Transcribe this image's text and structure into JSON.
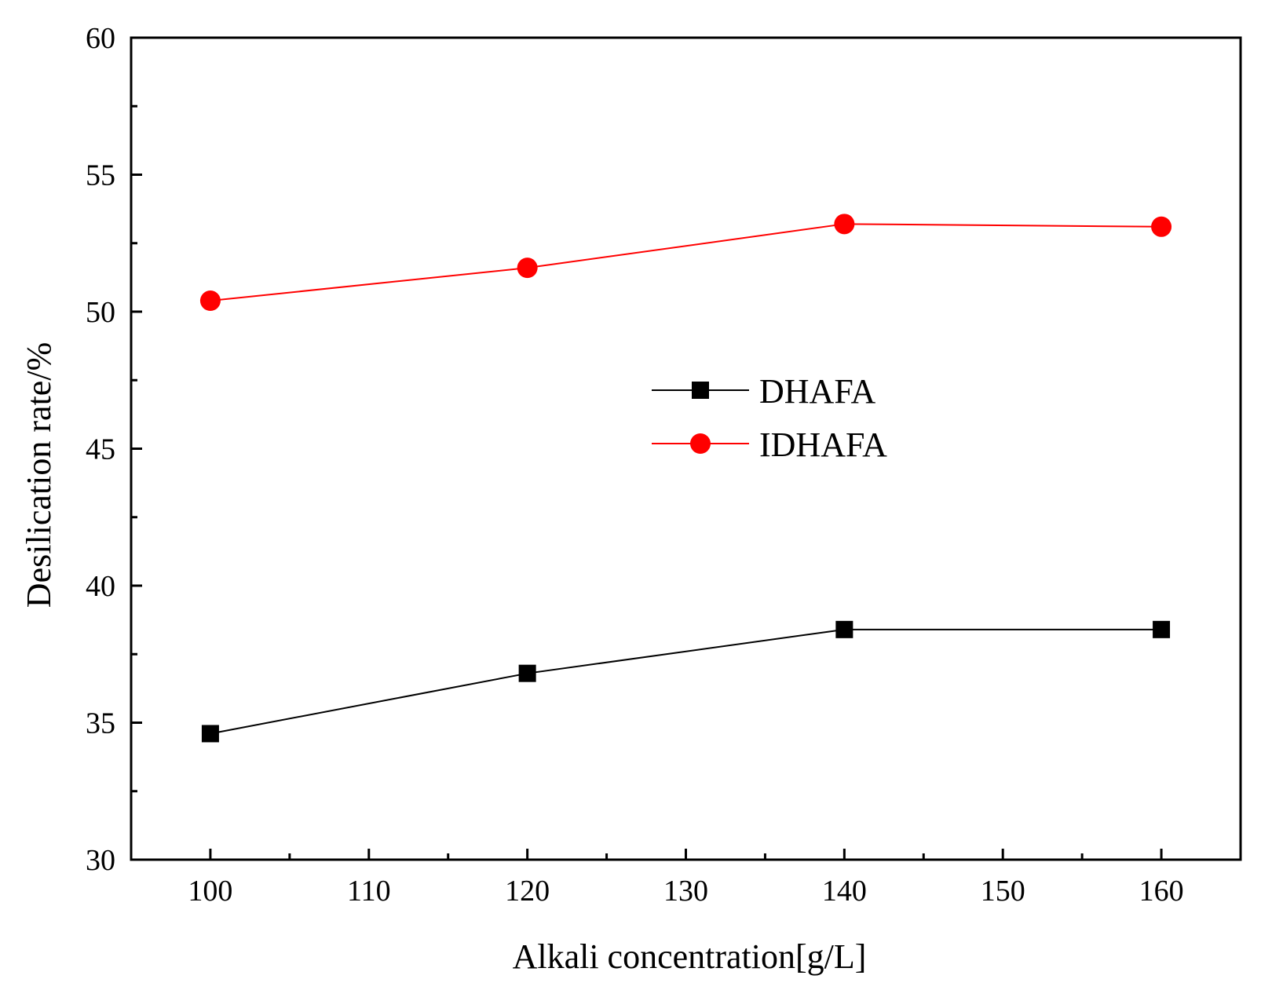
{
  "chart_data": {
    "type": "line",
    "title": "",
    "xlabel": "Alkali concentration[g/L]",
    "ylabel": "Desilication rate/%",
    "xlim": [
      95,
      165
    ],
    "ylim": [
      30,
      60
    ],
    "xticks": [
      100,
      110,
      120,
      130,
      140,
      150,
      160
    ],
    "xtick_labels": [
      "100",
      "110",
      "120",
      "130",
      "140",
      "150",
      "160"
    ],
    "yticks": [
      30,
      35,
      40,
      45,
      50,
      55,
      60
    ],
    "ytick_labels": [
      "30",
      "35",
      "40",
      "45",
      "50",
      "55",
      "60"
    ],
    "x_minor_step": 5,
    "y_minor_step": 2.5,
    "grid": false,
    "legend_position": "center-right",
    "series": [
      {
        "name": "DHAFA",
        "marker": "square",
        "color": "#000000",
        "x": [
          100,
          120,
          140,
          160
        ],
        "y": [
          34.6,
          36.8,
          38.4,
          38.4
        ]
      },
      {
        "name": "IDHAFA",
        "marker": "circle",
        "color": "#ff0000",
        "x": [
          100,
          120,
          140,
          160
        ],
        "y": [
          50.4,
          51.6,
          53.2,
          53.1
        ]
      }
    ]
  }
}
